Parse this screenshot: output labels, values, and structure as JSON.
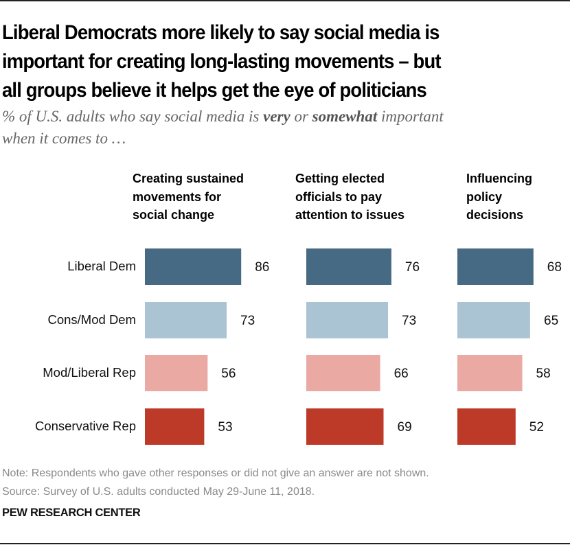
{
  "title_lines": [
    "Liberal Democrats more likely to say social media is",
    "important for creating long-lasting movements – but",
    "all groups believe it helps get the eye of politicians"
  ],
  "subtitle": {
    "part1": "% of U.S. adults who say social media is ",
    "very": "very",
    "or": " or ",
    "somewhat": "somewhat",
    "part2": " important",
    "line2": "when it comes to …"
  },
  "chart_data": {
    "type": "bar",
    "orientation": "horizontal",
    "title": "Liberal Democrats more likely to say social media is important for creating long-lasting movements – but all groups believe it helps get the eye of politicians",
    "subtitle": "% of U.S. adults who say social media is very or somewhat important when it comes to …",
    "categories": [
      "Liberal Dem",
      "Cons/Mod Dem",
      "Mod/Liberal Rep",
      "Conservative Rep"
    ],
    "category_colors": [
      "#466a84",
      "#abc4d4",
      "#eaaaa3",
      "#be3a28"
    ],
    "panels": [
      {
        "name": "Creating sustained movements for social change",
        "header_lines": [
          "Creating sustained",
          "movements for",
          "social change"
        ],
        "values": [
          86,
          73,
          56,
          53
        ]
      },
      {
        "name": "Getting elected officials to pay attention to issues",
        "header_lines": [
          "Getting elected",
          "officials to pay",
          "attention to issues"
        ],
        "values": [
          76,
          73,
          66,
          69
        ]
      },
      {
        "name": "Influencing policy decisions",
        "header_lines": [
          "Influencing",
          "policy",
          "decisions"
        ],
        "values": [
          68,
          65,
          58,
          52
        ]
      }
    ],
    "xlabel": "",
    "ylabel": "",
    "xlim": [
      0,
      100
    ],
    "grid": false,
    "legend": "none",
    "data_labels": true
  },
  "footer": {
    "note": "Note: Respondents who gave other responses or did not give an answer are not shown.",
    "source": "Source: Survey of U.S. adults conducted May 29-June 11, 2018.",
    "brand": "PEW RESEARCH CENTER"
  }
}
